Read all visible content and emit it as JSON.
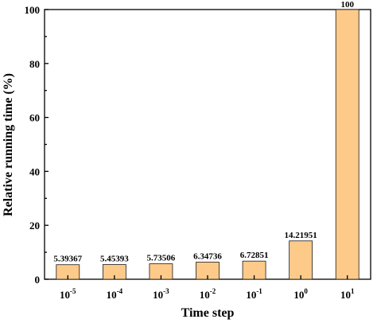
{
  "chart_data": {
    "type": "bar",
    "categories": [
      {
        "base": "10",
        "exp": "-5"
      },
      {
        "base": "10",
        "exp": "-4"
      },
      {
        "base": "10",
        "exp": "-3"
      },
      {
        "base": "10",
        "exp": "-2"
      },
      {
        "base": "10",
        "exp": "-1"
      },
      {
        "base": "10",
        "exp": "0"
      },
      {
        "base": "10",
        "exp": "1"
      }
    ],
    "values": [
      5.39367,
      5.45393,
      5.73506,
      6.34736,
      6.72851,
      14.21951,
      100
    ],
    "value_labels": [
      "5.39367",
      "5.45393",
      "5.73506",
      "6.34736",
      "6.72851",
      "14.21951",
      "100"
    ],
    "title": "",
    "xlabel": "Time step",
    "ylabel": "Relative running time (%)",
    "ylim": [
      0,
      100
    ],
    "yticks": [
      0,
      20,
      40,
      60,
      80,
      100
    ],
    "grid": false,
    "bar_color": "#FDCA8A",
    "edge_color": "#1a1a1a"
  }
}
